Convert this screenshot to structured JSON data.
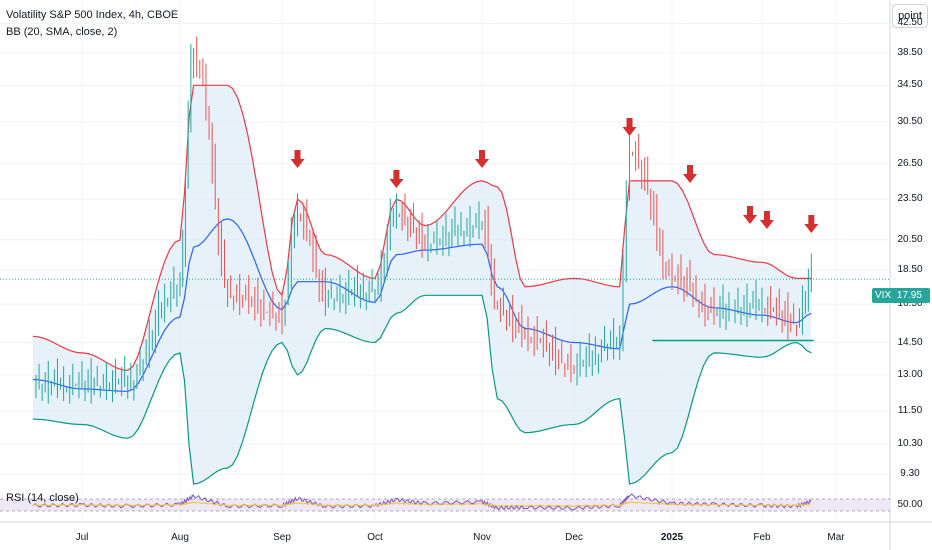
{
  "header": {
    "title": "Volatility S&P 500 Index, 4h, CBOE",
    "indicator": "BB (20, SMA, close, 2)",
    "unit_button": "point",
    "rsi_label": "RSI (14, close)"
  },
  "last_price": {
    "symbol": "VIX",
    "value": "17.95"
  },
  "price_scale": [
    "42.50",
    "38.50",
    "34.50",
    "30.50",
    "26.50",
    "23.50",
    "20.50",
    "18.50",
    "16.50",
    "14.50",
    "13.00",
    "11.50",
    "10.30",
    "9.30"
  ],
  "rsi_scale": [
    "50.00"
  ],
  "time_axis": [
    "Jul",
    "Aug",
    "Sep",
    "Oct",
    "Nov",
    "Dec",
    "2025",
    "Feb",
    "Mar"
  ],
  "colors": {
    "up": "#26a69a",
    "down": "#ef5350",
    "upper_band": "#f23645",
    "basis": "#2962ff",
    "lower_band": "#089981",
    "band_fill": "#dcebf8",
    "arrow": "#d32f2f",
    "rsi_line": "#7e57c2",
    "rsi_ma": "#fbc02d",
    "rsi_band": "#ede7f6"
  },
  "chart_data": {
    "type": "line",
    "title": "Volatility S&P 500 Index, 4h, CBOE",
    "y_scale": "log",
    "ylim": [
      9.0,
      46.0
    ],
    "x": [
      "Jun-15",
      "Jul-01",
      "Jul-15",
      "Aug-01",
      "Aug-05",
      "Aug-15",
      "Sep-01",
      "Sep-06",
      "Sep-15",
      "Oct-01",
      "Oct-07",
      "Oct-15",
      "Nov-01",
      "Nov-06",
      "Nov-15",
      "Dec-01",
      "Dec-15",
      "Dec-18",
      "Jan-01",
      "Jan-15",
      "Feb-01",
      "Feb-15",
      "Feb-21"
    ],
    "series": [
      {
        "role": "close",
        "values": [
          12.5,
          12.5,
          12.6,
          17.5,
          38.0,
          17.0,
          15.8,
          22.4,
          16.8,
          17.2,
          22.4,
          20.2,
          21.4,
          16.2,
          14.8,
          13.3,
          14.5,
          27.6,
          18.0,
          16.0,
          16.3,
          15.4,
          17.95
        ]
      },
      {
        "role": "upper",
        "values": [
          14.8,
          14.0,
          13.2,
          20.5,
          34.5,
          34.5,
          17.0,
          23.5,
          19.5,
          18.0,
          23.5,
          21.5,
          25.0,
          24.5,
          17.5,
          18.0,
          17.5,
          25.0,
          25.0,
          19.5,
          19.0,
          18.0,
          18.0
        ]
      },
      {
        "role": "basis",
        "values": [
          12.8,
          12.4,
          12.3,
          15.8,
          20.0,
          22.0,
          16.2,
          17.8,
          17.8,
          16.6,
          19.5,
          19.8,
          20.2,
          17.5,
          15.2,
          14.5,
          14.2,
          16.5,
          17.5,
          16.3,
          15.9,
          15.5,
          16.0
        ]
      },
      {
        "role": "lower",
        "values": [
          11.2,
          11.0,
          10.5,
          14.0,
          9.0,
          9.5,
          14.5,
          13.0,
          15.2,
          14.5,
          16.0,
          17.0,
          17.0,
          12.0,
          10.7,
          11.0,
          12.0,
          9.0,
          10.0,
          14.0,
          13.8,
          14.5,
          14.0
        ]
      }
    ],
    "support_level": 14.6,
    "markers": [
      {
        "label": "down-arrow",
        "x": "Sep-06"
      },
      {
        "label": "down-arrow",
        "x": "Oct-07"
      },
      {
        "label": "down-arrow",
        "x": "Nov-01"
      },
      {
        "label": "down-arrow",
        "x": "Dec-18"
      },
      {
        "label": "down-arrow",
        "x": "Jan-07"
      },
      {
        "label": "down-arrow",
        "x": "Jan-27"
      },
      {
        "label": "down-arrow",
        "x": "Feb-03"
      },
      {
        "label": "down-arrow",
        "x": "Feb-21"
      }
    ],
    "rsi": {
      "ylim": [
        0,
        100
      ],
      "band": [
        30,
        70
      ],
      "values": [
        48,
        50,
        46,
        52,
        80,
        46,
        48,
        72,
        45,
        48,
        68,
        55,
        60,
        40,
        42,
        40,
        48,
        82,
        55,
        52,
        48,
        46,
        62
      ]
    }
  }
}
